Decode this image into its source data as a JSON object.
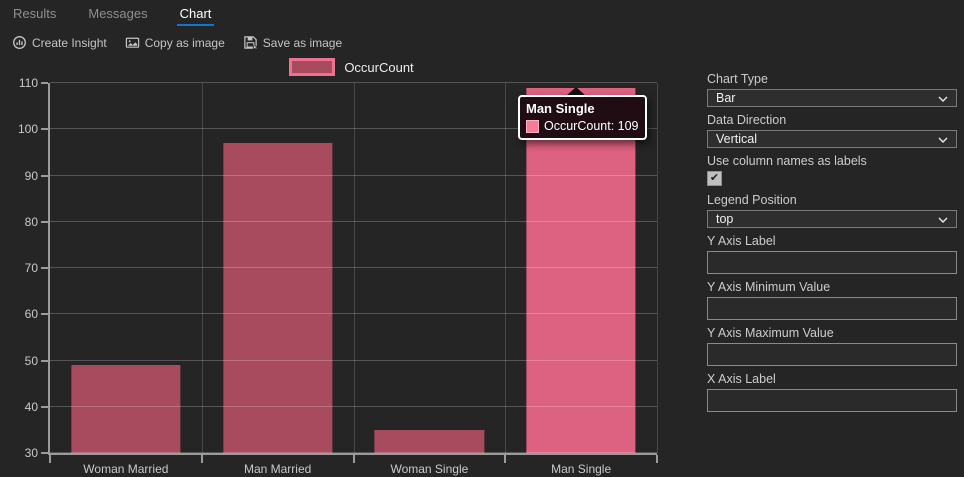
{
  "app": {
    "accent": "#1374ca"
  },
  "tabs": [
    {
      "label": "Results",
      "active": false
    },
    {
      "label": "Messages",
      "active": false
    },
    {
      "label": "Chart",
      "active": true
    }
  ],
  "toolbar": {
    "items": [
      {
        "label": "Create Insight",
        "icon": "create-insight-icon"
      },
      {
        "label": "Copy as image",
        "icon": "copy-as-image-icon"
      },
      {
        "label": "Save as image",
        "icon": "save-as-image-icon"
      }
    ]
  },
  "legend": {
    "label": "OccurCount"
  },
  "tooltip": {
    "title": "Man Single",
    "series_label": "OccurCount",
    "value": 109,
    "text": "OccurCount: 109"
  },
  "chart_data": {
    "type": "bar",
    "title": "",
    "categories": [
      "Woman Married",
      "Man Married",
      "Woman Single",
      "Man Single"
    ],
    "series": [
      {
        "name": "OccurCount",
        "values": [
          49,
          97,
          35,
          109
        ]
      }
    ],
    "xlabel": "",
    "ylabel": "",
    "ylim": [
      30,
      110
    ],
    "ytick_step": 10,
    "grid": true,
    "legend_position": "top",
    "highlighted_category": "Man Single",
    "highlight_index": 3,
    "colors": {
      "bar": "#a84b5f",
      "bar_highlight": "#dd6180",
      "legend_border": "#ef7190"
    }
  },
  "panel": {
    "fields": [
      {
        "label": "Chart Type",
        "type": "select",
        "value": "Bar"
      },
      {
        "label": "Data Direction",
        "type": "select",
        "value": "Vertical"
      },
      {
        "label": "Use column names as labels",
        "type": "checkbox",
        "checked": true
      },
      {
        "label": "Legend Position",
        "type": "select",
        "value": "top"
      },
      {
        "label": "Y Axis Label",
        "type": "text",
        "value": ""
      },
      {
        "label": "Y Axis Minimum Value",
        "type": "text",
        "value": ""
      },
      {
        "label": "Y Axis Maximum Value",
        "type": "text",
        "value": ""
      },
      {
        "label": "X Axis Label",
        "type": "text",
        "value": ""
      }
    ]
  }
}
